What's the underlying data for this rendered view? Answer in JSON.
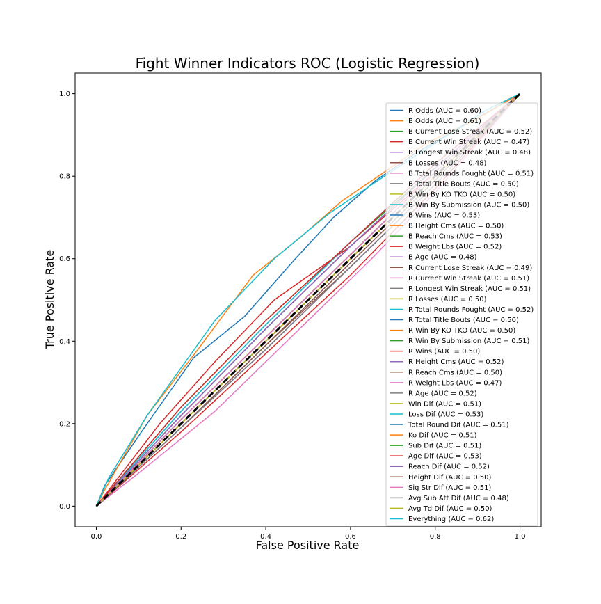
{
  "chart_data": {
    "type": "line",
    "title": "Fight Winner Indicators ROC (Logistic Regression)",
    "xlabel": "False Positive Rate",
    "ylabel": "True Positive Rate",
    "xlim": [
      -0.05,
      1.05
    ],
    "ylim": [
      -0.05,
      1.05
    ],
    "xticks": [
      0.0,
      0.2,
      0.4,
      0.6,
      0.8,
      1.0
    ],
    "yticks": [
      0.0,
      0.2,
      0.4,
      0.6,
      0.8,
      1.0
    ],
    "xtick_labels": [
      "0.0",
      "0.2",
      "0.4",
      "0.6",
      "0.8",
      "1.0"
    ],
    "ytick_labels": [
      "0.0",
      "0.2",
      "0.4",
      "0.6",
      "0.8",
      "1.0"
    ],
    "grid": false,
    "legend_position": "right",
    "reference_line": {
      "x": [
        0,
        1
      ],
      "y": [
        0,
        1
      ],
      "color": "#000000",
      "style": "dashed"
    },
    "series": [
      {
        "name": "R Odds (AUC = 0.60)",
        "color": "#1f77b4",
        "x": [
          0,
          0.02,
          0.12,
          0.23,
          0.35,
          0.47,
          0.56,
          0.66,
          0.76,
          0.88,
          1
        ],
        "y": [
          0,
          0.05,
          0.2,
          0.36,
          0.46,
          0.6,
          0.7,
          0.79,
          0.86,
          0.93,
          1
        ]
      },
      {
        "name": "B Odds (AUC = 0.61)",
        "color": "#ff7f0e",
        "x": [
          0,
          0.02,
          0.12,
          0.24,
          0.37,
          0.48,
          0.58,
          0.68,
          0.78,
          0.9,
          1
        ],
        "y": [
          0,
          0.04,
          0.22,
          0.38,
          0.56,
          0.65,
          0.74,
          0.81,
          0.88,
          0.94,
          1
        ]
      },
      {
        "name": "B Current Lose Streak (AUC = 0.52)",
        "color": "#2ca02c",
        "x": [
          0,
          0.2,
          0.4,
          0.6,
          0.8,
          1
        ],
        "y": [
          0,
          0.22,
          0.43,
          0.63,
          0.82,
          1
        ]
      },
      {
        "name": "B Current Win Streak (AUC = 0.47)",
        "color": "#d62728",
        "x": [
          0,
          0.2,
          0.4,
          0.6,
          0.8,
          1
        ],
        "y": [
          0,
          0.18,
          0.37,
          0.56,
          0.77,
          1
        ]
      },
      {
        "name": "B Longest Win Streak (AUC = 0.48)",
        "color": "#9467bd",
        "x": [
          0,
          0.2,
          0.4,
          0.6,
          0.8,
          1
        ],
        "y": [
          0,
          0.19,
          0.38,
          0.58,
          0.78,
          1
        ]
      },
      {
        "name": "B Losses (AUC = 0.48)",
        "color": "#8c564b",
        "x": [
          0,
          0.2,
          0.4,
          0.6,
          0.8,
          1
        ],
        "y": [
          0,
          0.19,
          0.39,
          0.58,
          0.78,
          1
        ]
      },
      {
        "name": "B Total Rounds Fought (AUC = 0.51)",
        "color": "#e377c2",
        "x": [
          0,
          0.2,
          0.4,
          0.6,
          0.8,
          1
        ],
        "y": [
          0,
          0.21,
          0.41,
          0.61,
          0.81,
          1
        ]
      },
      {
        "name": "B Total Title Bouts (AUC = 0.50)",
        "color": "#7f7f7f",
        "x": [
          0,
          0.2,
          0.4,
          0.6,
          0.8,
          1
        ],
        "y": [
          0,
          0.2,
          0.4,
          0.6,
          0.8,
          1
        ]
      },
      {
        "name": "B Win By KO TKO (AUC = 0.50)",
        "color": "#bcbd22",
        "x": [
          0,
          0.2,
          0.4,
          0.6,
          0.8,
          1
        ],
        "y": [
          0,
          0.2,
          0.4,
          0.6,
          0.8,
          1
        ]
      },
      {
        "name": "B Win By Submission (AUC = 0.50)",
        "color": "#17becf",
        "x": [
          0,
          0.2,
          0.4,
          0.6,
          0.8,
          1
        ],
        "y": [
          0,
          0.2,
          0.4,
          0.6,
          0.8,
          1
        ]
      },
      {
        "name": "B Wins (AUC = 0.53)",
        "color": "#1f77b4",
        "x": [
          0,
          0.2,
          0.4,
          0.6,
          0.8,
          1
        ],
        "y": [
          0,
          0.23,
          0.44,
          0.64,
          0.83,
          1
        ]
      },
      {
        "name": "B Height Cms (AUC = 0.50)",
        "color": "#ff7f0e",
        "x": [
          0,
          0.2,
          0.4,
          0.6,
          0.8,
          1
        ],
        "y": [
          0,
          0.2,
          0.4,
          0.6,
          0.8,
          1
        ]
      },
      {
        "name": "B Reach Cms (AUC = 0.53)",
        "color": "#2ca02c",
        "x": [
          0,
          0.2,
          0.4,
          0.6,
          0.8,
          1
        ],
        "y": [
          0,
          0.24,
          0.45,
          0.64,
          0.82,
          1
        ]
      },
      {
        "name": "B Weight Lbs (AUC = 0.52)",
        "color": "#d62728",
        "x": [
          0,
          0.15,
          0.28,
          0.42,
          0.6,
          0.8,
          1
        ],
        "y": [
          0,
          0.2,
          0.35,
          0.5,
          0.63,
          0.81,
          1
        ]
      },
      {
        "name": "B Age (AUC = 0.48)",
        "color": "#9467bd",
        "x": [
          0,
          0.2,
          0.4,
          0.6,
          0.8,
          1
        ],
        "y": [
          0,
          0.19,
          0.38,
          0.58,
          0.78,
          1
        ]
      },
      {
        "name": "R Current Lose Streak (AUC = 0.49)",
        "color": "#8c564b",
        "x": [
          0,
          0.2,
          0.4,
          0.6,
          0.8,
          1
        ],
        "y": [
          0,
          0.19,
          0.39,
          0.59,
          0.79,
          1
        ]
      },
      {
        "name": "R Current Win Streak (AUC = 0.51)",
        "color": "#e377c2",
        "x": [
          0,
          0.2,
          0.4,
          0.6,
          0.8,
          1
        ],
        "y": [
          0,
          0.21,
          0.41,
          0.61,
          0.81,
          1
        ]
      },
      {
        "name": "R Longest Win Streak (AUC = 0.51)",
        "color": "#7f7f7f",
        "x": [
          0,
          0.2,
          0.4,
          0.6,
          0.8,
          1
        ],
        "y": [
          0,
          0.21,
          0.41,
          0.61,
          0.81,
          1
        ]
      },
      {
        "name": "R Losses (AUC = 0.50)",
        "color": "#bcbd22",
        "x": [
          0,
          0.2,
          0.4,
          0.6,
          0.8,
          1
        ],
        "y": [
          0,
          0.2,
          0.4,
          0.6,
          0.8,
          1
        ]
      },
      {
        "name": "R Total Rounds Fought (AUC = 0.52)",
        "color": "#17becf",
        "x": [
          0,
          0.2,
          0.4,
          0.6,
          0.8,
          1
        ],
        "y": [
          0,
          0.22,
          0.43,
          0.63,
          0.82,
          1
        ]
      },
      {
        "name": "R Total Title Bouts (AUC = 0.50)",
        "color": "#1f77b4",
        "x": [
          0,
          0.2,
          0.4,
          0.6,
          0.8,
          1
        ],
        "y": [
          0,
          0.2,
          0.4,
          0.6,
          0.8,
          1
        ]
      },
      {
        "name": "R Win By KO TKO (AUC = 0.50)",
        "color": "#ff7f0e",
        "x": [
          0,
          0.2,
          0.4,
          0.6,
          0.8,
          1
        ],
        "y": [
          0,
          0.2,
          0.4,
          0.6,
          0.8,
          1
        ]
      },
      {
        "name": "R Win By Submission (AUC = 0.51)",
        "color": "#2ca02c",
        "x": [
          0,
          0.2,
          0.4,
          0.6,
          0.8,
          1
        ],
        "y": [
          0,
          0.21,
          0.41,
          0.61,
          0.81,
          1
        ]
      },
      {
        "name": "R Wins (AUC = 0.50)",
        "color": "#d62728",
        "x": [
          0,
          0.2,
          0.4,
          0.6,
          0.8,
          1
        ],
        "y": [
          0,
          0.2,
          0.4,
          0.6,
          0.8,
          1
        ]
      },
      {
        "name": "R Height Cms (AUC = 0.52)",
        "color": "#9467bd",
        "x": [
          0,
          0.2,
          0.4,
          0.6,
          0.8,
          1
        ],
        "y": [
          0,
          0.22,
          0.43,
          0.63,
          0.82,
          1
        ]
      },
      {
        "name": "R Reach Cms (AUC = 0.50)",
        "color": "#8c564b",
        "x": [
          0,
          0.2,
          0.4,
          0.6,
          0.8,
          1
        ],
        "y": [
          0,
          0.2,
          0.4,
          0.6,
          0.8,
          1
        ]
      },
      {
        "name": "R Weight Lbs (AUC = 0.47)",
        "color": "#e377c2",
        "x": [
          0,
          0.1,
          0.28,
          0.45,
          0.65,
          0.8,
          1
        ],
        "y": [
          0,
          0.08,
          0.23,
          0.4,
          0.6,
          0.76,
          1
        ]
      },
      {
        "name": "R Age (AUC = 0.52)",
        "color": "#7f7f7f",
        "x": [
          0,
          0.2,
          0.4,
          0.6,
          0.8,
          1
        ],
        "y": [
          0,
          0.22,
          0.43,
          0.63,
          0.82,
          1
        ]
      },
      {
        "name": "Win Dif (AUC = 0.51)",
        "color": "#bcbd22",
        "x": [
          0,
          0.2,
          0.4,
          0.6,
          0.8,
          1
        ],
        "y": [
          0,
          0.21,
          0.41,
          0.61,
          0.81,
          1
        ]
      },
      {
        "name": "Loss Dif (AUC = 0.53)",
        "color": "#17becf",
        "x": [
          0,
          0.2,
          0.4,
          0.6,
          0.8,
          1
        ],
        "y": [
          0,
          0.23,
          0.44,
          0.64,
          0.83,
          1
        ]
      },
      {
        "name": "Total Round Dif (AUC = 0.51)",
        "color": "#1f77b4",
        "x": [
          0,
          0.2,
          0.4,
          0.6,
          0.8,
          1
        ],
        "y": [
          0,
          0.21,
          0.41,
          0.61,
          0.81,
          1
        ]
      },
      {
        "name": "Ko Dif (AUC = 0.51)",
        "color": "#ff7f0e",
        "x": [
          0,
          0.2,
          0.4,
          0.6,
          0.8,
          1
        ],
        "y": [
          0,
          0.21,
          0.41,
          0.61,
          0.81,
          1
        ]
      },
      {
        "name": "Sub Dif (AUC = 0.51)",
        "color": "#2ca02c",
        "x": [
          0,
          0.2,
          0.4,
          0.6,
          0.8,
          1
        ],
        "y": [
          0,
          0.21,
          0.41,
          0.61,
          0.81,
          1
        ]
      },
      {
        "name": "Age Dif (AUC = 0.53)",
        "color": "#d62728",
        "x": [
          0,
          0.2,
          0.4,
          0.6,
          0.8,
          1
        ],
        "y": [
          0,
          0.24,
          0.45,
          0.64,
          0.83,
          1
        ]
      },
      {
        "name": "Reach Dif (AUC = 0.52)",
        "color": "#9467bd",
        "x": [
          0,
          0.2,
          0.4,
          0.6,
          0.8,
          1
        ],
        "y": [
          0,
          0.22,
          0.43,
          0.63,
          0.82,
          1
        ]
      },
      {
        "name": "Height Dif (AUC = 0.50)",
        "color": "#8c564b",
        "x": [
          0,
          0.2,
          0.4,
          0.6,
          0.8,
          1
        ],
        "y": [
          0,
          0.2,
          0.4,
          0.6,
          0.8,
          1
        ]
      },
      {
        "name": "Sig Str Dif (AUC = 0.51)",
        "color": "#e377c2",
        "x": [
          0,
          0.2,
          0.4,
          0.6,
          0.8,
          1
        ],
        "y": [
          0,
          0.21,
          0.41,
          0.61,
          0.81,
          1
        ]
      },
      {
        "name": "Avg Sub Att Dif (AUC = 0.48)",
        "color": "#7f7f7f",
        "x": [
          0,
          0.2,
          0.4,
          0.6,
          0.8,
          1
        ],
        "y": [
          0,
          0.19,
          0.38,
          0.58,
          0.78,
          1
        ]
      },
      {
        "name": "Avg Td Dif (AUC = 0.50)",
        "color": "#bcbd22",
        "x": [
          0,
          0.2,
          0.4,
          0.6,
          0.8,
          1
        ],
        "y": [
          0,
          0.2,
          0.4,
          0.6,
          0.8,
          1
        ]
      },
      {
        "name": "Everything (AUC = 0.62)",
        "color": "#17becf",
        "x": [
          0,
          0.03,
          0.12,
          0.28,
          0.42,
          0.55,
          0.68,
          0.8,
          0.92,
          1
        ],
        "y": [
          0,
          0.07,
          0.22,
          0.45,
          0.6,
          0.71,
          0.8,
          0.88,
          0.96,
          1
        ]
      }
    ]
  }
}
